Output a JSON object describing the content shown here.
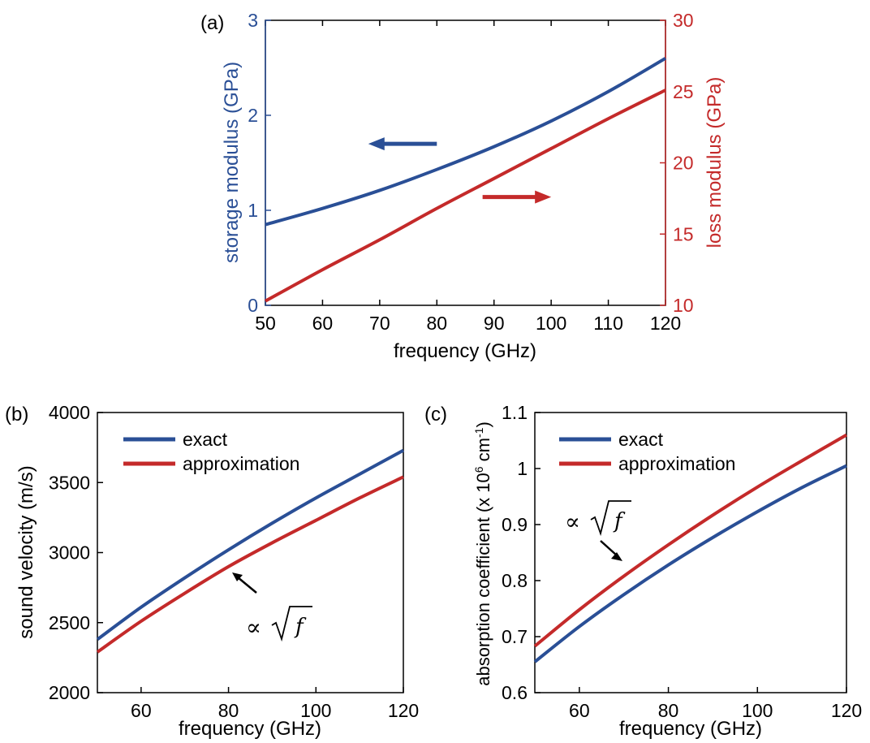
{
  "colors": {
    "blue": "#2a4f96",
    "red": "#c42a2a",
    "axis": "#000000"
  },
  "chart_data": [
    {
      "panel_label": "(a)",
      "type": "line",
      "xlabel": "frequency (GHz)",
      "ylabel": "storage modulus (GPa)",
      "ylabel_right": "loss modulus (GPa)",
      "xlim": [
        50,
        120
      ],
      "ylim": [
        0,
        3
      ],
      "ylim_right": [
        10,
        30
      ],
      "xticks": [
        50,
        60,
        70,
        80,
        90,
        100,
        110,
        120
      ],
      "yticks": [
        0,
        1,
        2,
        3
      ],
      "yticks_right": [
        10,
        15,
        20,
        25,
        30
      ],
      "grid": false,
      "series": [
        {
          "axis": "left",
          "color": "#2a4f96",
          "x": [
            50,
            60,
            70,
            80,
            90,
            100,
            110,
            120
          ],
          "y": [
            0.85,
            1.02,
            1.21,
            1.43,
            1.67,
            1.94,
            2.25,
            2.6
          ]
        },
        {
          "axis": "right",
          "color": "#c42a2a",
          "x": [
            50,
            60,
            70,
            80,
            90,
            100,
            110,
            120
          ],
          "y": [
            10.3,
            12.5,
            14.6,
            16.8,
            18.9,
            21.0,
            23.1,
            25.1
          ]
        }
      ],
      "annotations": [
        {
          "type": "arrow",
          "direction": "left",
          "color": "#2a4f96",
          "from": [
            80,
            1.7
          ],
          "to": [
            68,
            1.7
          ]
        },
        {
          "type": "arrow",
          "direction": "right",
          "color": "#c42a2a",
          "from": [
            88,
            1.14
          ],
          "to": [
            100,
            1.14
          ]
        }
      ]
    },
    {
      "panel_label": "(b)",
      "type": "line",
      "xlabel": "frequency (GHz)",
      "ylabel": "sound velocity (m/s)",
      "xlim": [
        50,
        120
      ],
      "ylim": [
        2000,
        4000
      ],
      "xticks": [
        60,
        80,
        100,
        120
      ],
      "yticks": [
        2000,
        2500,
        3000,
        3500,
        4000
      ],
      "grid": false,
      "legend": "top-left",
      "series": [
        {
          "name": "exact",
          "color": "#2a4f96",
          "x": [
            50,
            60,
            70,
            80,
            90,
            100,
            110,
            120
          ],
          "y": [
            2380,
            2610,
            2820,
            3020,
            3210,
            3390,
            3560,
            3730
          ]
        },
        {
          "name": "approximation",
          "color": "#c42a2a",
          "x": [
            50,
            60,
            70,
            80,
            90,
            100,
            110,
            120
          ],
          "y": [
            2290,
            2510,
            2710,
            2900,
            3070,
            3230,
            3390,
            3540
          ]
        }
      ],
      "annotation": {
        "text": "∝",
        "sqrt_arg": "f",
        "arrow_from": [
          87,
          2720
        ],
        "arrow_to": [
          81,
          2880
        ]
      }
    },
    {
      "panel_label": "(c)",
      "type": "line",
      "xlabel": "frequency (GHz)",
      "ylabel": "absorption coefficient (x 10",
      "ylabel_sup": "6",
      "ylabel_mid": " cm",
      "ylabel_sup2": "-1",
      "ylabel_end": ")",
      "xlim": [
        50,
        120
      ],
      "ylim": [
        0.6,
        1.1
      ],
      "xticks": [
        60,
        80,
        100,
        120
      ],
      "yticks": [
        0.6,
        0.7,
        0.8,
        0.9,
        1,
        1.1
      ],
      "grid": false,
      "legend": "top-left",
      "series": [
        {
          "name": "exact",
          "color": "#2a4f96",
          "x": [
            50,
            60,
            70,
            80,
            90,
            100,
            110,
            120
          ],
          "y": [
            0.655,
            0.718,
            0.775,
            0.828,
            0.877,
            0.923,
            0.966,
            1.005
          ]
        },
        {
          "name": "approximation",
          "color": "#c42a2a",
          "x": [
            50,
            60,
            70,
            80,
            90,
            100,
            110,
            120
          ],
          "y": [
            0.683,
            0.748,
            0.808,
            0.864,
            0.917,
            0.967,
            1.014,
            1.06
          ]
        }
      ],
      "annotation": {
        "text": "∝",
        "sqrt_arg": "f",
        "arrow_from": [
          63,
          0.865
        ],
        "arrow_to": [
          70,
          0.828
        ]
      }
    }
  ]
}
